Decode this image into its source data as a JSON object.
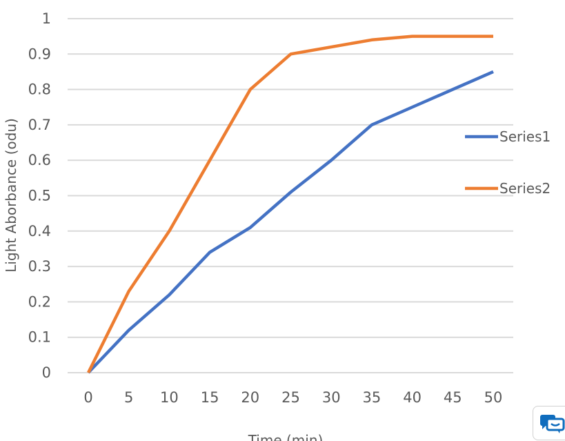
{
  "chart_data": {
    "type": "line",
    "title": "",
    "xlabel": "Time (min)",
    "ylabel": "Light Aborbance (odu)",
    "x": [
      0,
      5,
      10,
      15,
      20,
      25,
      30,
      35,
      40,
      45,
      50
    ],
    "xticks": [
      "0",
      "5",
      "10",
      "15",
      "20",
      "25",
      "30",
      "35",
      "40",
      "45",
      "50"
    ],
    "yticks": [
      "0",
      "0.1",
      "0.2",
      "0.3",
      "0.4",
      "0.5",
      "0.6",
      "0.7",
      "0.8",
      "0.9",
      "1"
    ],
    "ylim": [
      0,
      1
    ],
    "xlim": [
      0,
      50
    ],
    "grid": true,
    "legend_position": "right",
    "series": [
      {
        "name": "Series1",
        "color": "#4472C4",
        "values": [
          0,
          0.12,
          0.22,
          0.34,
          0.41,
          0.51,
          0.6,
          0.7,
          0.75,
          0.8,
          0.85
        ]
      },
      {
        "name": "Series2",
        "color": "#ED7D31",
        "values": [
          0,
          0.23,
          0.4,
          0.6,
          0.8,
          0.9,
          0.92,
          0.94,
          0.95,
          0.95,
          0.95
        ]
      }
    ]
  },
  "widget": {
    "icon": "chat-bubbles-icon",
    "color": "#0F6CBD"
  }
}
